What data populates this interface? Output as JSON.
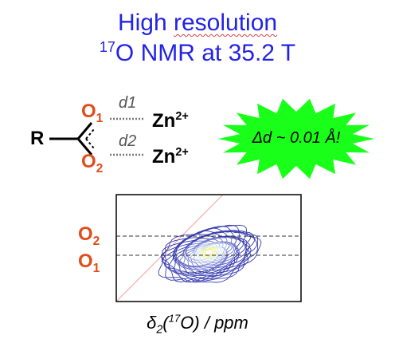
{
  "title": {
    "line1_a": "High ",
    "line1_b": "resolution",
    "line2_sup": "17",
    "line2_main": "O NMR at 35.2 T"
  },
  "structure": {
    "r_label": "R",
    "o1_letter": "O",
    "o1_sub": "1",
    "o2_letter": "O",
    "o2_sub": "2",
    "d1": "d1",
    "d2": "d2",
    "zn1": "Zn",
    "zn1_sup": "2+",
    "zn2": "Zn",
    "zn2_sup": "2+"
  },
  "callout": {
    "text": "Δd ~ 0.01 Å!",
    "fill_color": "#1aff1a"
  },
  "spectrum": {
    "o2_letter": "O",
    "o2_sub": "2",
    "o1_letter": "O",
    "o1_sub": "1",
    "xlabel_delta": "δ",
    "xlabel_sub": "2",
    "xlabel_open": "(",
    "xlabel_sup": "17",
    "xlabel_rest": "O) / ppm",
    "contour_colors": [
      "#3a3fb0",
      "#6e78d0",
      "#a9b3e6",
      "#cfe8e4",
      "#f3f08a"
    ]
  }
}
